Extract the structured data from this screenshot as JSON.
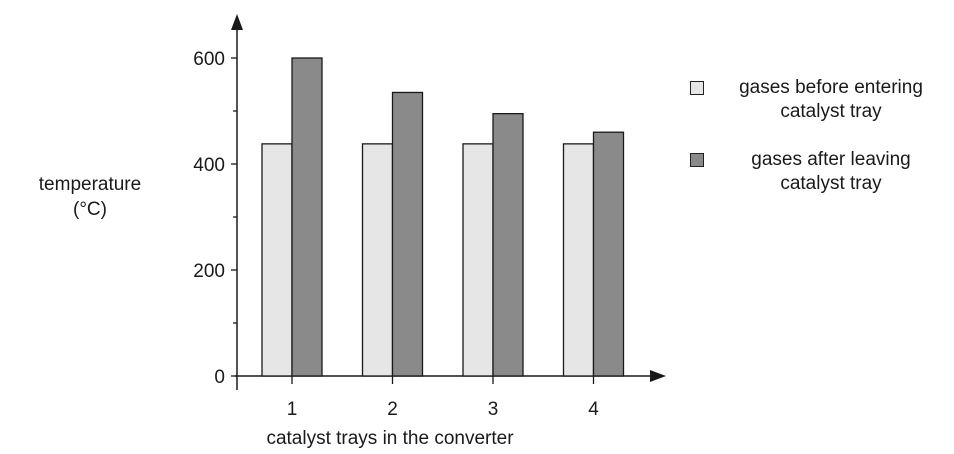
{
  "chart_data": {
    "type": "bar",
    "categories": [
      "1",
      "2",
      "3",
      "4"
    ],
    "series": [
      {
        "name": "gases before entering catalyst tray",
        "values": [
          438,
          438,
          438,
          438
        ],
        "color": "#e6e6e6"
      },
      {
        "name": "gases after leaving catalyst tray",
        "values": [
          600,
          535,
          495,
          460
        ],
        "color": "#8a8a8a"
      }
    ],
    "xlabel": "catalyst trays in the converter",
    "ylabel_line1": "temperature",
    "ylabel_line2": "(°C)",
    "yticks": [
      0,
      200,
      400,
      600
    ],
    "ylim": [
      0,
      700
    ],
    "grid": false,
    "legend_position": "right",
    "legend": [
      {
        "line1": "gases before entering",
        "line2": "catalyst tray"
      },
      {
        "line1": "gases after leaving",
        "line2": "catalyst tray"
      }
    ]
  }
}
